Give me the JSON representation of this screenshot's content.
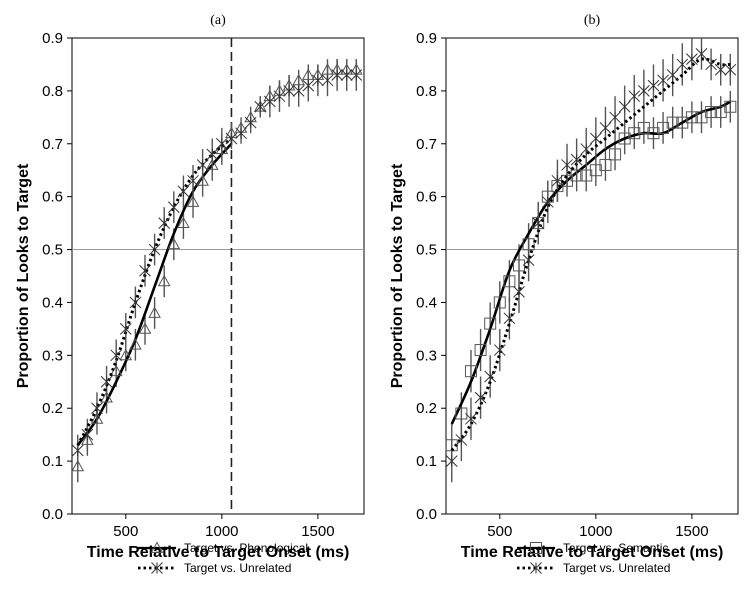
{
  "chart_data": [
    {
      "type": "line",
      "title": "(a)",
      "xlabel": "Time Relative to Target Onset (ms)",
      "ylabel": "Proportion of Looks to Target",
      "xlim": [
        220,
        1740
      ],
      "ylim": [
        0,
        0.9
      ],
      "xticks": [
        500,
        1000,
        1500
      ],
      "yticks": [
        0,
        0.1,
        0.2,
        0.3,
        0.4,
        0.5,
        0.6,
        0.7,
        0.8,
        0.9
      ],
      "reference_hline": 0.5,
      "reference_vline": 1050,
      "grid": false,
      "legend_position": "below",
      "series": [
        {
          "name": "Target vs. Phonological",
          "marker": "triangle",
          "fit_style": "solid",
          "x": [
            250,
            300,
            350,
            400,
            450,
            500,
            550,
            600,
            650,
            700,
            750,
            800,
            850,
            900,
            950,
            1000,
            1050,
            1100,
            1150,
            1200,
            1250,
            1300,
            1350,
            1400,
            1450,
            1500,
            1550,
            1600,
            1650,
            1700
          ],
          "y": [
            0.09,
            0.14,
            0.18,
            0.22,
            0.27,
            0.3,
            0.32,
            0.35,
            0.38,
            0.44,
            0.51,
            0.55,
            0.59,
            0.63,
            0.66,
            0.69,
            0.72,
            0.73,
            0.75,
            0.77,
            0.79,
            0.8,
            0.81,
            0.82,
            0.83,
            0.83,
            0.84,
            0.84,
            0.84,
            0.84
          ],
          "error": [
            0.03,
            0.03,
            0.03,
            0.03,
            0.03,
            0.03,
            0.03,
            0.03,
            0.03,
            0.03,
            0.03,
            0.03,
            0.03,
            0.03,
            0.03,
            0.03,
            0.02,
            0.02,
            0.02,
            0.02,
            0.02,
            0.02,
            0.02,
            0.02,
            0.02,
            0.02,
            0.02,
            0.02,
            0.02,
            0.02
          ],
          "fit_x": [
            250,
            350,
            450,
            550,
            650,
            750,
            850,
            950,
            1050
          ],
          "fit_y": [
            0.13,
            0.18,
            0.25,
            0.33,
            0.43,
            0.53,
            0.61,
            0.66,
            0.7
          ]
        },
        {
          "name": "Target vs. Unrelated",
          "marker": "asterisk",
          "fit_style": "dotted",
          "x": [
            250,
            300,
            350,
            400,
            450,
            500,
            550,
            600,
            650,
            700,
            750,
            800,
            850,
            900,
            950,
            1000,
            1050,
            1100,
            1150,
            1200,
            1250,
            1300,
            1350,
            1400,
            1450,
            1500,
            1550,
            1600,
            1650,
            1700
          ],
          "y": [
            0.12,
            0.15,
            0.2,
            0.25,
            0.3,
            0.35,
            0.4,
            0.46,
            0.5,
            0.55,
            0.58,
            0.61,
            0.63,
            0.66,
            0.68,
            0.7,
            0.71,
            0.72,
            0.74,
            0.77,
            0.78,
            0.79,
            0.8,
            0.8,
            0.81,
            0.82,
            0.82,
            0.83,
            0.83,
            0.83
          ],
          "error": [
            0.03,
            0.03,
            0.03,
            0.03,
            0.03,
            0.03,
            0.03,
            0.03,
            0.03,
            0.03,
            0.03,
            0.03,
            0.03,
            0.03,
            0.03,
            0.03,
            0.02,
            0.02,
            0.02,
            0.02,
            0.03,
            0.03,
            0.03,
            0.03,
            0.03,
            0.03,
            0.03,
            0.03,
            0.03,
            0.03
          ],
          "fit_x": [
            250,
            350,
            450,
            550,
            650,
            750,
            850,
            950,
            1050
          ],
          "fit_y": [
            0.13,
            0.2,
            0.29,
            0.4,
            0.5,
            0.58,
            0.64,
            0.68,
            0.71
          ]
        }
      ]
    },
    {
      "type": "line",
      "title": "(b)",
      "xlabel": "Time Relative to Target Onset (ms)",
      "ylabel": "Proportion of Looks to Target",
      "xlim": [
        220,
        1740
      ],
      "ylim": [
        0,
        0.9
      ],
      "xticks": [
        500,
        1000,
        1500
      ],
      "yticks": [
        0,
        0.1,
        0.2,
        0.3,
        0.4,
        0.5,
        0.6,
        0.7,
        0.8,
        0.9
      ],
      "reference_hline": 0.5,
      "grid": false,
      "legend_position": "below",
      "series": [
        {
          "name": "Target vs. Semantic",
          "marker": "square",
          "fit_style": "solid",
          "x": [
            250,
            300,
            350,
            400,
            450,
            500,
            550,
            600,
            650,
            700,
            750,
            800,
            850,
            900,
            950,
            1000,
            1050,
            1100,
            1150,
            1200,
            1250,
            1300,
            1350,
            1400,
            1450,
            1500,
            1550,
            1600,
            1650,
            1700
          ],
          "y": [
            0.13,
            0.19,
            0.27,
            0.31,
            0.36,
            0.4,
            0.44,
            0.47,
            0.51,
            0.55,
            0.6,
            0.62,
            0.63,
            0.64,
            0.64,
            0.65,
            0.66,
            0.68,
            0.71,
            0.72,
            0.73,
            0.72,
            0.73,
            0.74,
            0.74,
            0.75,
            0.75,
            0.76,
            0.76,
            0.77
          ],
          "error": [
            0.04,
            0.04,
            0.04,
            0.04,
            0.04,
            0.04,
            0.04,
            0.04,
            0.04,
            0.04,
            0.03,
            0.03,
            0.03,
            0.03,
            0.03,
            0.03,
            0.03,
            0.03,
            0.03,
            0.03,
            0.03,
            0.03,
            0.03,
            0.03,
            0.03,
            0.03,
            0.03,
            0.03,
            0.03,
            0.03
          ],
          "fit_x": [
            250,
            350,
            450,
            550,
            650,
            750,
            850,
            950,
            1050,
            1150,
            1250,
            1350,
            1450,
            1550,
            1650,
            1700
          ],
          "fit_y": [
            0.17,
            0.25,
            0.35,
            0.46,
            0.53,
            0.59,
            0.63,
            0.66,
            0.69,
            0.71,
            0.72,
            0.72,
            0.74,
            0.76,
            0.77,
            0.78
          ]
        },
        {
          "name": "Target vs. Unrelated",
          "marker": "asterisk",
          "fit_style": "dotted",
          "x": [
            250,
            300,
            350,
            400,
            450,
            500,
            550,
            600,
            650,
            700,
            750,
            800,
            850,
            900,
            950,
            1000,
            1050,
            1100,
            1150,
            1200,
            1250,
            1300,
            1350,
            1400,
            1450,
            1500,
            1550,
            1600,
            1650,
            1700
          ],
          "y": [
            0.1,
            0.14,
            0.18,
            0.22,
            0.26,
            0.31,
            0.37,
            0.42,
            0.48,
            0.55,
            0.59,
            0.63,
            0.66,
            0.67,
            0.69,
            0.71,
            0.73,
            0.75,
            0.77,
            0.79,
            0.8,
            0.81,
            0.82,
            0.83,
            0.85,
            0.86,
            0.87,
            0.85,
            0.84,
            0.84
          ],
          "error": [
            0.04,
            0.04,
            0.04,
            0.04,
            0.04,
            0.04,
            0.04,
            0.04,
            0.04,
            0.04,
            0.04,
            0.04,
            0.04,
            0.04,
            0.04,
            0.04,
            0.04,
            0.04,
            0.04,
            0.04,
            0.04,
            0.04,
            0.04,
            0.04,
            0.04,
            0.04,
            0.03,
            0.03,
            0.03,
            0.03
          ],
          "fit_x": [
            250,
            350,
            450,
            550,
            650,
            750,
            850,
            950,
            1050,
            1150,
            1250,
            1350,
            1450,
            1550,
            1650,
            1700
          ],
          "fit_y": [
            0.12,
            0.17,
            0.25,
            0.36,
            0.48,
            0.58,
            0.64,
            0.68,
            0.71,
            0.74,
            0.77,
            0.8,
            0.83,
            0.86,
            0.85,
            0.85
          ]
        }
      ]
    }
  ]
}
